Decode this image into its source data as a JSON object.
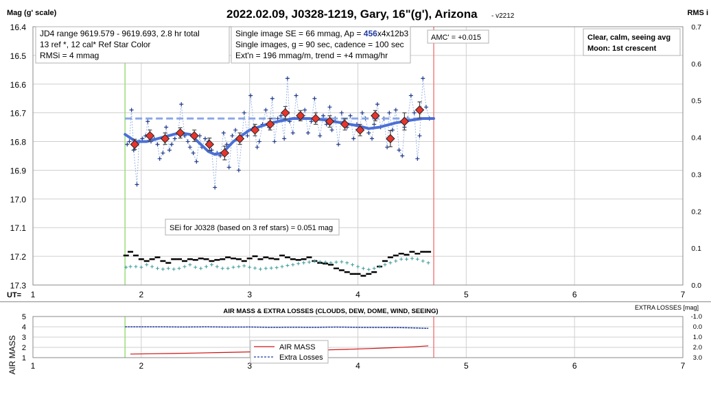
{
  "title": "2022.02.09, J0328-1219, Gary, 16\"(g'), Arizona",
  "version": "- v2212",
  "ylabel_left": "Mag (g' scale)",
  "ylabel_right": "RMS i",
  "xlabel": "UT=",
  "info_boxes": {
    "box1": [
      "JD4 range 9619.579 - 9619.693, 2.8 hr total",
      "13 ref *, 12 cal*  Ref Star Color",
      "RMSi = 4 mmag"
    ],
    "box2_line1_prefix": "Single image SE = 66 mmag, Ap = ",
    "box2_line1_ap": "456",
    "box2_line1_suffix": "x4x12b3",
    "box2_line2": "Single images, g = 90 sec, cadence = 100 sec",
    "box2_line3": "Ext'n = 196 mmag/m, trend = +4 mmag/hr",
    "amc": "AMC' = +0.015",
    "conditions": [
      "Clear, calm, seeing avg",
      "Moon: 1st crescent"
    ],
    "sei": "SEi for J0328 (based on 3 ref stars) = 0.051 mag"
  },
  "lower_panel": {
    "title": "AIR MASS & EXTRA LOSSES (CLOUDS, DEW, DOME, WIND, SEEING)",
    "ylabel_left": "AIR MASS",
    "ylabel_right_main": "EXTRA LOSSES",
    "ylabel_right_unit": "[mag]",
    "legend": [
      "AIR MASS",
      "Extra Losses"
    ]
  },
  "colors": {
    "singles": "#1f3a8a",
    "model": "#4a6fd6",
    "binned": "#e8352c",
    "rms_black": "#000000",
    "rms_teal": "#3a9a9a",
    "airmass": "#cc1010",
    "losses": "#1f3aa0",
    "start_line": "#99dd77",
    "end_line": "#f08080"
  },
  "chart_data": [
    {
      "type": "scatter",
      "title": "2022.02.09, J0328-1219, Gary, 16\"(g'), Arizona",
      "xlabel": "UT=",
      "ylabel": "Mag (g' scale)",
      "xlim": [
        1,
        7
      ],
      "ylim": [
        16.4,
        17.3
      ],
      "y_inverted": true,
      "y2label": "RMS i",
      "y2lim": [
        0,
        0.7
      ],
      "xticks": [
        1,
        2,
        3,
        4,
        5,
        6,
        7
      ],
      "yticks": [
        16.4,
        16.5,
        16.6,
        16.7,
        16.8,
        16.9,
        17.0,
        17.1,
        17.2,
        17.3
      ],
      "y2ticks": [
        0,
        0.1,
        0.2,
        0.3,
        0.4,
        0.5,
        0.6,
        0.7
      ],
      "grid": true,
      "vertical_markers": {
        "start": 1.85,
        "end": 4.7
      },
      "series": [
        {
          "name": "Singles",
          "x": [
            1.87,
            1.89,
            1.91,
            1.93,
            1.96,
            1.98,
            2.01,
            2.04,
            2.06,
            2.09,
            2.12,
            2.15,
            2.17,
            2.2,
            2.23,
            2.26,
            2.28,
            2.31,
            2.34,
            2.37,
            2.4,
            2.43,
            2.45,
            2.48,
            2.51,
            2.54,
            2.56,
            2.59,
            2.62,
            2.65,
            2.68,
            2.7,
            2.73,
            2.76,
            2.79,
            2.81,
            2.84,
            2.87,
            2.9,
            2.93,
            2.95,
            2.98,
            3.01,
            3.04,
            3.07,
            3.09,
            3.12,
            3.15,
            3.18,
            3.21,
            3.23,
            3.26,
            3.29,
            3.32,
            3.35,
            3.37,
            3.4,
            3.43,
            3.46,
            3.49,
            3.51,
            3.54,
            3.57,
            3.6,
            3.62,
            3.65,
            3.68,
            3.71,
            3.74,
            3.76,
            3.79,
            3.82,
            3.85,
            3.87,
            3.9,
            3.93,
            3.96,
            3.99,
            4.01,
            4.04,
            4.07,
            4.1,
            4.13,
            4.15,
            4.18,
            4.21,
            4.24,
            4.27,
            4.29,
            4.32,
            4.35,
            4.38,
            4.41,
            4.43,
            4.46,
            4.49,
            4.52,
            4.55,
            4.57,
            4.6,
            4.63,
            4.66
          ],
          "values": [
            16.81,
            16.8,
            16.69,
            16.83,
            16.95,
            16.8,
            16.79,
            16.78,
            16.73,
            16.8,
            16.79,
            16.81,
            16.86,
            16.84,
            16.75,
            16.83,
            16.81,
            16.79,
            16.77,
            16.67,
            16.78,
            16.8,
            16.82,
            16.84,
            16.87,
            16.78,
            16.82,
            16.79,
            16.8,
            16.83,
            16.96,
            16.84,
            16.85,
            16.77,
            16.81,
            16.89,
            16.78,
            16.76,
            16.9,
            16.79,
            16.7,
            16.78,
            16.64,
            16.75,
            16.82,
            16.8,
            16.74,
            16.69,
            16.75,
            16.65,
            16.8,
            16.72,
            16.71,
            16.79,
            16.58,
            16.73,
            16.77,
            16.64,
            16.72,
            16.71,
            16.69,
            16.77,
            16.73,
            16.65,
            16.72,
            16.78,
            16.71,
            16.74,
            16.68,
            16.76,
            16.72,
            16.81,
            16.7,
            16.73,
            16.75,
            16.71,
            16.79,
            16.74,
            16.76,
            16.7,
            16.72,
            16.77,
            16.79,
            16.74,
            16.67,
            16.75,
            16.72,
            16.82,
            16.7,
            16.76,
            16.69,
            16.83,
            16.85,
            16.75,
            16.72,
            16.64,
            16.7,
            16.86,
            16.78,
            16.58,
            16.68,
            16.72
          ]
        },
        {
          "name": "Binned",
          "x": [
            1.94,
            2.08,
            2.22,
            2.36,
            2.49,
            2.63,
            2.77,
            2.91,
            3.05,
            3.19,
            3.33,
            3.47,
            3.61,
            3.74,
            3.88,
            4.02,
            4.16,
            4.3,
            4.43,
            4.57
          ],
          "values": [
            16.81,
            16.78,
            16.79,
            16.77,
            16.78,
            16.81,
            16.84,
            16.79,
            16.76,
            16.74,
            16.7,
            16.71,
            16.72,
            16.73,
            16.74,
            16.76,
            16.71,
            16.79,
            16.73,
            16.69
          ],
          "errors": [
            0.018,
            0.02,
            0.02,
            0.018,
            0.02,
            0.022,
            0.024,
            0.02,
            0.02,
            0.02,
            0.022,
            0.018,
            0.02,
            0.02,
            0.02,
            0.02,
            0.018,
            0.028,
            0.03,
            0.028
          ]
        },
        {
          "name": "Model",
          "x": [
            1.85,
            1.95,
            2.05,
            2.15,
            2.25,
            2.35,
            2.45,
            2.55,
            2.62,
            2.68,
            2.75,
            2.85,
            3.0,
            3.2,
            3.4,
            3.55,
            3.7,
            3.85,
            4.0,
            4.1,
            4.2,
            4.35,
            4.5,
            4.6,
            4.7
          ],
          "values": [
            16.775,
            16.8,
            16.8,
            16.79,
            16.78,
            16.77,
            16.775,
            16.81,
            16.835,
            16.845,
            16.84,
            16.8,
            16.76,
            16.735,
            16.72,
            16.72,
            16.725,
            16.735,
            16.745,
            16.755,
            16.75,
            16.735,
            16.725,
            16.72,
            16.72
          ]
        },
        {
          "name": "Trend",
          "x": [
            1.85,
            4.7
          ],
          "values": [
            16.72,
            16.72
          ]
        },
        {
          "name": "RMS black",
          "axis": "y2",
          "x": [
            1.86,
            1.9,
            1.95,
            2.0,
            2.05,
            2.1,
            2.15,
            2.2,
            2.25,
            2.3,
            2.35,
            2.4,
            2.45,
            2.5,
            2.55,
            2.6,
            2.65,
            2.7,
            2.75,
            2.8,
            2.85,
            2.9,
            2.95,
            3.0,
            3.05,
            3.1,
            3.15,
            3.2,
            3.25,
            3.3,
            3.35,
            3.4,
            3.45,
            3.5,
            3.55,
            3.6,
            3.65,
            3.7,
            3.75,
            3.8,
            3.85,
            3.9,
            3.95,
            4.0,
            4.05,
            4.1,
            4.15,
            4.2,
            4.25,
            4.3,
            4.35,
            4.4,
            4.45,
            4.5,
            4.55,
            4.6,
            4.65
          ],
          "values": [
            0.08,
            0.09,
            0.08,
            0.07,
            0.065,
            0.07,
            0.075,
            0.065,
            0.06,
            0.07,
            0.07,
            0.065,
            0.07,
            0.068,
            0.072,
            0.07,
            0.065,
            0.068,
            0.07,
            0.075,
            0.072,
            0.07,
            0.065,
            0.072,
            0.078,
            0.07,
            0.075,
            0.072,
            0.07,
            0.08,
            0.075,
            0.07,
            0.068,
            0.07,
            0.075,
            0.065,
            0.06,
            0.058,
            0.055,
            0.045,
            0.04,
            0.035,
            0.03,
            0.03,
            0.025,
            0.03,
            0.035,
            0.05,
            0.065,
            0.075,
            0.08,
            0.085,
            0.082,
            0.09,
            0.085,
            0.09,
            0.09
          ]
        },
        {
          "name": "RMS teal",
          "axis": "y2",
          "x": [
            1.86,
            1.9,
            1.95,
            2.0,
            2.05,
            2.1,
            2.15,
            2.2,
            2.25,
            2.3,
            2.35,
            2.4,
            2.45,
            2.5,
            2.55,
            2.6,
            2.65,
            2.7,
            2.75,
            2.8,
            2.85,
            2.9,
            2.95,
            3.0,
            3.05,
            3.1,
            3.15,
            3.2,
            3.25,
            3.3,
            3.35,
            3.4,
            3.45,
            3.5,
            3.55,
            3.6,
            3.65,
            3.7,
            3.75,
            3.8,
            3.85,
            3.9,
            3.95,
            4.0,
            4.05,
            4.1,
            4.15,
            4.2,
            4.25,
            4.3,
            4.35,
            4.4,
            4.45,
            4.5,
            4.55,
            4.6,
            4.65
          ],
          "values": [
            0.048,
            0.05,
            0.05,
            0.048,
            0.055,
            0.05,
            0.045,
            0.043,
            0.045,
            0.043,
            0.045,
            0.05,
            0.055,
            0.048,
            0.045,
            0.05,
            0.055,
            0.05,
            0.045,
            0.045,
            0.048,
            0.05,
            0.052,
            0.048,
            0.046,
            0.043,
            0.045,
            0.046,
            0.047,
            0.05,
            0.053,
            0.055,
            0.058,
            0.06,
            0.062,
            0.065,
            0.063,
            0.062,
            0.06,
            0.062,
            0.063,
            0.06,
            0.055,
            0.05,
            0.045,
            0.042,
            0.045,
            0.05,
            0.055,
            0.06,
            0.065,
            0.07,
            0.07,
            0.072,
            0.07,
            0.065,
            0.06
          ]
        }
      ]
    },
    {
      "type": "line",
      "title": "AIR MASS & EXTRA LOSSES (CLOUDS, DEW, DOME, WIND, SEEING)",
      "ylabel": "AIR MASS",
      "y2label": "EXTRA LOSSES [mag]",
      "xlim": [
        1,
        7
      ],
      "ylim": [
        1,
        5
      ],
      "y2lim": [
        3.0,
        -1.0
      ],
      "xticks": [
        1,
        2,
        3,
        4,
        5,
        6,
        7
      ],
      "yticks": [
        1,
        2,
        3,
        4,
        5
      ],
      "y2ticks": [
        -1.0,
        0.0,
        1.0,
        2.0,
        3.0
      ],
      "grid": true,
      "series": [
        {
          "name": "AIR MASS",
          "x": [
            1.9,
            2.1,
            2.3,
            2.5,
            2.7,
            2.9,
            3.1,
            3.3,
            3.5,
            3.7,
            3.9,
            4.1,
            4.3,
            4.5,
            4.65
          ],
          "values": [
            1.35,
            1.38,
            1.41,
            1.45,
            1.49,
            1.53,
            1.58,
            1.63,
            1.69,
            1.75,
            1.81,
            1.88,
            1.96,
            2.05,
            2.15
          ]
        },
        {
          "name": "Extra Losses",
          "axis": "y2",
          "x": [
            1.85,
            2.0,
            2.2,
            2.4,
            2.6,
            2.8,
            3.0,
            3.2,
            3.4,
            3.6,
            3.8,
            4.0,
            4.2,
            4.4,
            4.55,
            4.65
          ],
          "values": [
            0.0,
            0.0,
            0.0,
            0.02,
            0.0,
            0.03,
            0.02,
            0.05,
            0.04,
            0.05,
            0.03,
            0.05,
            0.06,
            0.08,
            0.12,
            0.15
          ]
        }
      ]
    }
  ]
}
